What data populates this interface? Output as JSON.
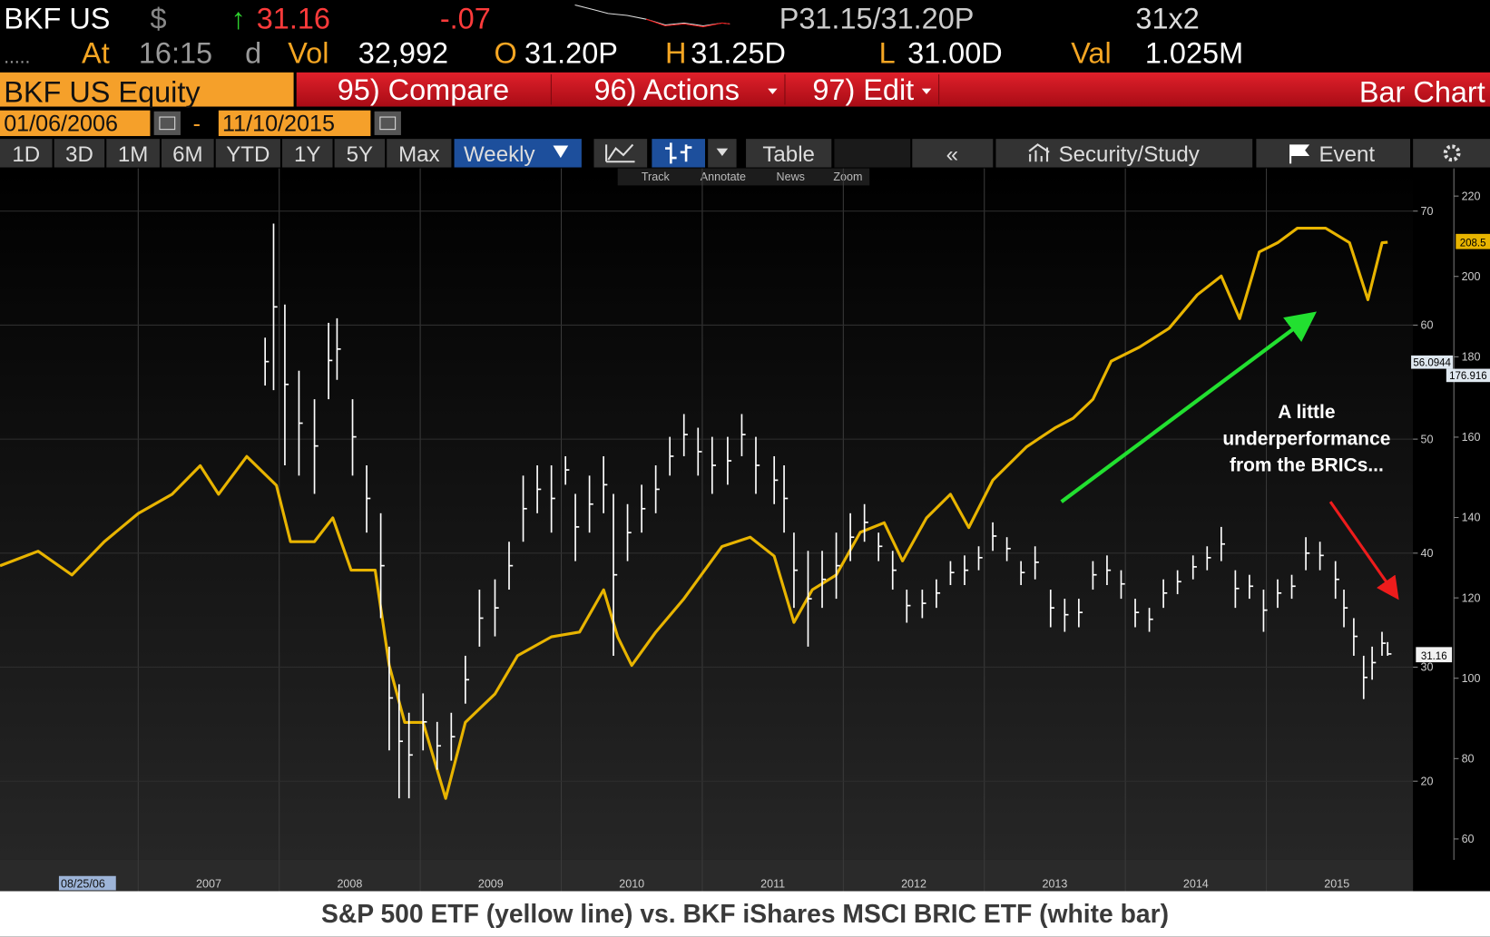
{
  "header": {
    "ticker": "BKF US",
    "currency": "$",
    "arrow": "↑",
    "last": "31.16",
    "change": "-.07",
    "bid_ask": "P31.15/31.20P",
    "size": "31x2",
    "dots": ".....",
    "at_label": "At",
    "time": "16:15",
    "time_flag": "d",
    "vol_label": "Vol",
    "vol": "32,992",
    "open_label": "O",
    "open": "31.20P",
    "high_label": "H",
    "high": "31.25D",
    "low_label": "L",
    "low": "31.00D",
    "val_label": "Val",
    "val": "1.025M"
  },
  "menu": {
    "security": "BKF US Equity",
    "items": [
      "95) Compare",
      "96) Actions",
      "97) Edit"
    ],
    "function": "Bar Chart"
  },
  "date_range": {
    "start": "01/06/2006",
    "separator": "-",
    "end": "11/10/2015"
  },
  "toolbar": {
    "periods": [
      "1D",
      "3D",
      "1M",
      "6M",
      "YTD",
      "1Y",
      "5Y",
      "Max"
    ],
    "frequency": "Weekly",
    "table": "Table",
    "back": "«",
    "study": "Security/Study",
    "event": "Event"
  },
  "chart_tools": [
    "Track",
    "Annotate",
    "News",
    "Zoom"
  ],
  "caption": "S&P 500 ETF (yellow line) vs. BKF iShares MSCI BRIC ETF (white bar)",
  "chart_data": {
    "type": "line",
    "xlim": [
      2006.02,
      2016.04
    ],
    "xticks": [
      2007,
      2008,
      2009,
      2010,
      2011,
      2012,
      2013,
      2014,
      2015
    ],
    "cursor_date": "08/25/06",
    "ylim": [
      13.1,
      73.75
    ],
    "yticks": [
      20,
      30,
      40,
      50,
      60,
      70
    ],
    "y2lim": [
      54.8,
      226.9
    ],
    "y2ticks": [
      60,
      80,
      100,
      120,
      140,
      160,
      180,
      200,
      220
    ],
    "grid": true,
    "price_tags": [
      "208.5",
      "56.0944",
      "176.916",
      "31.16"
    ],
    "annotation": [
      "A little",
      "underperformance",
      "from the BRICs..."
    ],
    "series": [
      {
        "type": "line",
        "color": "#e8b400",
        "axis": "y2",
        "x": [
          2006.02,
          2006.29,
          2006.53,
          2006.76,
          2007.0,
          2007.24,
          2007.44,
          2007.57,
          2007.77,
          2007.98,
          2008.08,
          2008.25,
          2008.38,
          2008.51,
          2008.68,
          2008.78,
          2008.89,
          2009.02,
          2009.18,
          2009.32,
          2009.53,
          2009.69,
          2009.93,
          2010.13,
          2010.3,
          2010.4,
          2010.5,
          2010.67,
          2010.87,
          2011.14,
          2011.34,
          2011.51,
          2011.65,
          2011.78,
          2011.95,
          2012.12,
          2012.29,
          2012.42,
          2012.59,
          2012.76,
          2012.89,
          2013.06,
          2013.3,
          2013.5,
          2013.63,
          2013.77,
          2013.9,
          2014.1,
          2014.31,
          2014.51,
          2014.68,
          2014.81,
          2014.95,
          2015.08,
          2015.22,
          2015.42,
          2015.59,
          2015.72,
          2015.82,
          2015.86
        ],
        "values": [
          128,
          131.6,
          125.7,
          134,
          141,
          145.8,
          152.9,
          145.8,
          155.2,
          148,
          134,
          134,
          139.9,
          126.9,
          126.9,
          103.2,
          89,
          89,
          70.1,
          89,
          96.1,
          105.6,
          110.3,
          111.5,
          122,
          110.3,
          103.2,
          111.5,
          119.8,
          132.8,
          135.1,
          130.4,
          113.9,
          122,
          125.7,
          136.3,
          138.7,
          129.2,
          139.9,
          145.8,
          137.5,
          149.3,
          157.6,
          162.3,
          164.7,
          169.4,
          178.9,
          182.4,
          187.1,
          195.4,
          200.1,
          189.5,
          206.1,
          208.4,
          212,
          212,
          208.4,
          194.2,
          208.4,
          208.5
        ]
      },
      {
        "type": "ohlc",
        "color": "#ffffff",
        "x": [
          2007.9,
          2007.96,
          2008.04,
          2008.14,
          2008.25,
          2008.35,
          2008.41,
          2008.52,
          2008.62,
          2008.72,
          2008.78,
          2008.85,
          2008.92,
          2009.02,
          2009.12,
          2009.22,
          2009.32,
          2009.42,
          2009.53,
          2009.63,
          2009.73,
          2009.83,
          2009.93,
          2010.03,
          2010.1,
          2010.2,
          2010.3,
          2010.37,
          2010.47,
          2010.57,
          2010.67,
          2010.77,
          2010.87,
          2010.97,
          2011.07,
          2011.18,
          2011.28,
          2011.38,
          2011.51,
          2011.58,
          2011.65,
          2011.75,
          2011.85,
          2011.95,
          2012.05,
          2012.15,
          2012.25,
          2012.35,
          2012.45,
          2012.56,
          2012.66,
          2012.76,
          2012.86,
          2012.96,
          2013.06,
          2013.16,
          2013.26,
          2013.36,
          2013.47,
          2013.57,
          2013.67,
          2013.77,
          2013.87,
          2013.97,
          2014.07,
          2014.17,
          2014.27,
          2014.37,
          2014.48,
          2014.58,
          2014.68,
          2014.78,
          2014.88,
          2014.98,
          2015.08,
          2015.18,
          2015.28,
          2015.38,
          2015.49,
          2015.55,
          2015.62,
          2015.69,
          2015.75,
          2015.82,
          2015.86
        ],
        "values": [
          56.8,
          61.6,
          54.8,
          51.4,
          49.4,
          56.9,
          57.9,
          50.2,
          44.8,
          38.9,
          27.3,
          23.5,
          22.3,
          25.2,
          23.1,
          23.9,
          28.9,
          34.3,
          35.2,
          38.9,
          43.9,
          45.6,
          44.8,
          47.3,
          42.3,
          44.3,
          46.0,
          38.1,
          41.8,
          43.9,
          45.6,
          48.5,
          50.4,
          48.9,
          47.7,
          48.1,
          50.4,
          47.7,
          46.4,
          44.8,
          38.5,
          36.0,
          37.7,
          38.9,
          41.4,
          42.7,
          40.6,
          38.5,
          35.4,
          35.6,
          36.5,
          38.3,
          38.5,
          39.6,
          41.5,
          40.4,
          38.3,
          39.2,
          35.2,
          34.6,
          34.8,
          38.1,
          38.5,
          37.3,
          34.8,
          34.2,
          36.5,
          37.5,
          38.8,
          39.6,
          40.8,
          36.9,
          37.1,
          35.0,
          36.5,
          37.1,
          40.0,
          39.8,
          37.7,
          35.2,
          32.7,
          29.1,
          30.4,
          32.1,
          31.16
        ],
        "high": [
          58.9,
          68.9,
          61.8,
          56.0,
          53.5,
          60.2,
          60.6,
          53.5,
          47.7,
          43.5,
          31.8,
          28.5,
          26.0,
          27.7,
          25.2,
          26.0,
          31.0,
          36.8,
          37.7,
          41.0,
          46.8,
          47.7,
          47.7,
          48.5,
          45.2,
          46.8,
          48.5,
          45.2,
          44.3,
          46.0,
          47.7,
          50.2,
          52.2,
          51.0,
          50.2,
          50.2,
          52.2,
          50.2,
          48.5,
          47.7,
          41.8,
          40.2,
          40.2,
          41.8,
          43.5,
          44.3,
          41.8,
          40.2,
          36.8,
          36.8,
          37.7,
          39.3,
          39.8,
          40.6,
          42.7,
          41.4,
          39.3,
          40.6,
          36.8,
          36.0,
          36.0,
          39.3,
          39.8,
          38.5,
          36.0,
          35.2,
          37.7,
          38.5,
          39.8,
          40.6,
          42.3,
          38.5,
          38.1,
          36.8,
          37.7,
          38.1,
          41.4,
          41.0,
          39.3,
          36.8,
          34.3,
          31.0,
          31.8,
          33.1,
          32.2
        ],
        "low": [
          54.7,
          54.3,
          47.7,
          46.8,
          45.2,
          53.5,
          55.2,
          46.8,
          41.8,
          34.3,
          22.7,
          18.5,
          18.5,
          22.7,
          21.0,
          21.8,
          26.8,
          31.8,
          32.7,
          36.8,
          41.0,
          43.5,
          41.8,
          46.0,
          39.3,
          41.8,
          43.5,
          31.0,
          39.3,
          41.8,
          43.5,
          46.8,
          48.5,
          46.8,
          45.2,
          46.0,
          48.5,
          45.2,
          44.3,
          41.8,
          35.2,
          31.8,
          35.2,
          36.0,
          39.3,
          41.0,
          39.3,
          36.8,
          33.9,
          34.3,
          35.2,
          37.2,
          37.2,
          38.5,
          40.2,
          39.3,
          37.2,
          37.7,
          33.5,
          33.1,
          33.5,
          36.8,
          37.2,
          36.0,
          33.5,
          33.1,
          35.2,
          36.4,
          37.7,
          38.5,
          39.3,
          35.2,
          36.0,
          33.1,
          35.2,
          36.0,
          38.5,
          38.5,
          36.0,
          33.5,
          31.0,
          27.2,
          28.9,
          31.0,
          31.0
        ]
      }
    ]
  }
}
